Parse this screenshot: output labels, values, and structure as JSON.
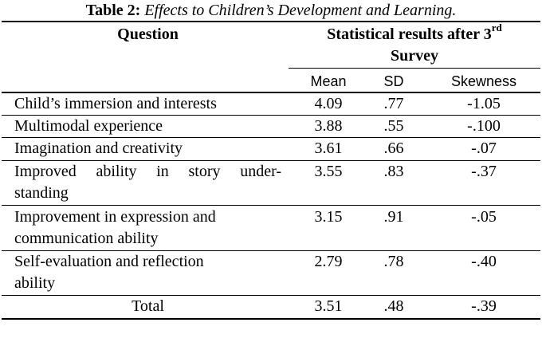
{
  "caption": {
    "label": "Table 2:",
    "title": "Effects to Children’s Development and Learning."
  },
  "header": {
    "question": "Question",
    "stats_main": "Statistical results after 3",
    "stats_sup": "rd",
    "stats_line2": "Survey",
    "col_mean": "Mean",
    "col_sd": "SD",
    "col_skewness": "Skewness"
  },
  "rows": [
    {
      "q1": "Child’s immersion and interests",
      "q2": "",
      "mean": "4.09",
      "sd": ".77",
      "skew": "-1.05"
    },
    {
      "q1": "Multimodal experience",
      "q2": "",
      "mean": "3.88",
      "sd": ".55",
      "skew": "-.100"
    },
    {
      "q1": "Imagination and creativity",
      "q2": "",
      "mean": "3.61",
      "sd": ".66",
      "skew": "-.07"
    },
    {
      "q1": "Improved ability in story under-",
      "q2": "standing",
      "mean": "3.55",
      "sd": ".83",
      "skew": "-.37"
    },
    {
      "q1": "Improvement in expression and",
      "q2": "communication ability",
      "mean": "3.15",
      "sd": ".91",
      "skew": "-.05"
    },
    {
      "q1": "Self-evaluation and reflection",
      "q2": "ability",
      "mean": "2.79",
      "sd": ".78",
      "skew": "-.40"
    }
  ],
  "total": {
    "label": "Total",
    "mean": "3.51",
    "sd": ".48",
    "skew": "-.39"
  }
}
